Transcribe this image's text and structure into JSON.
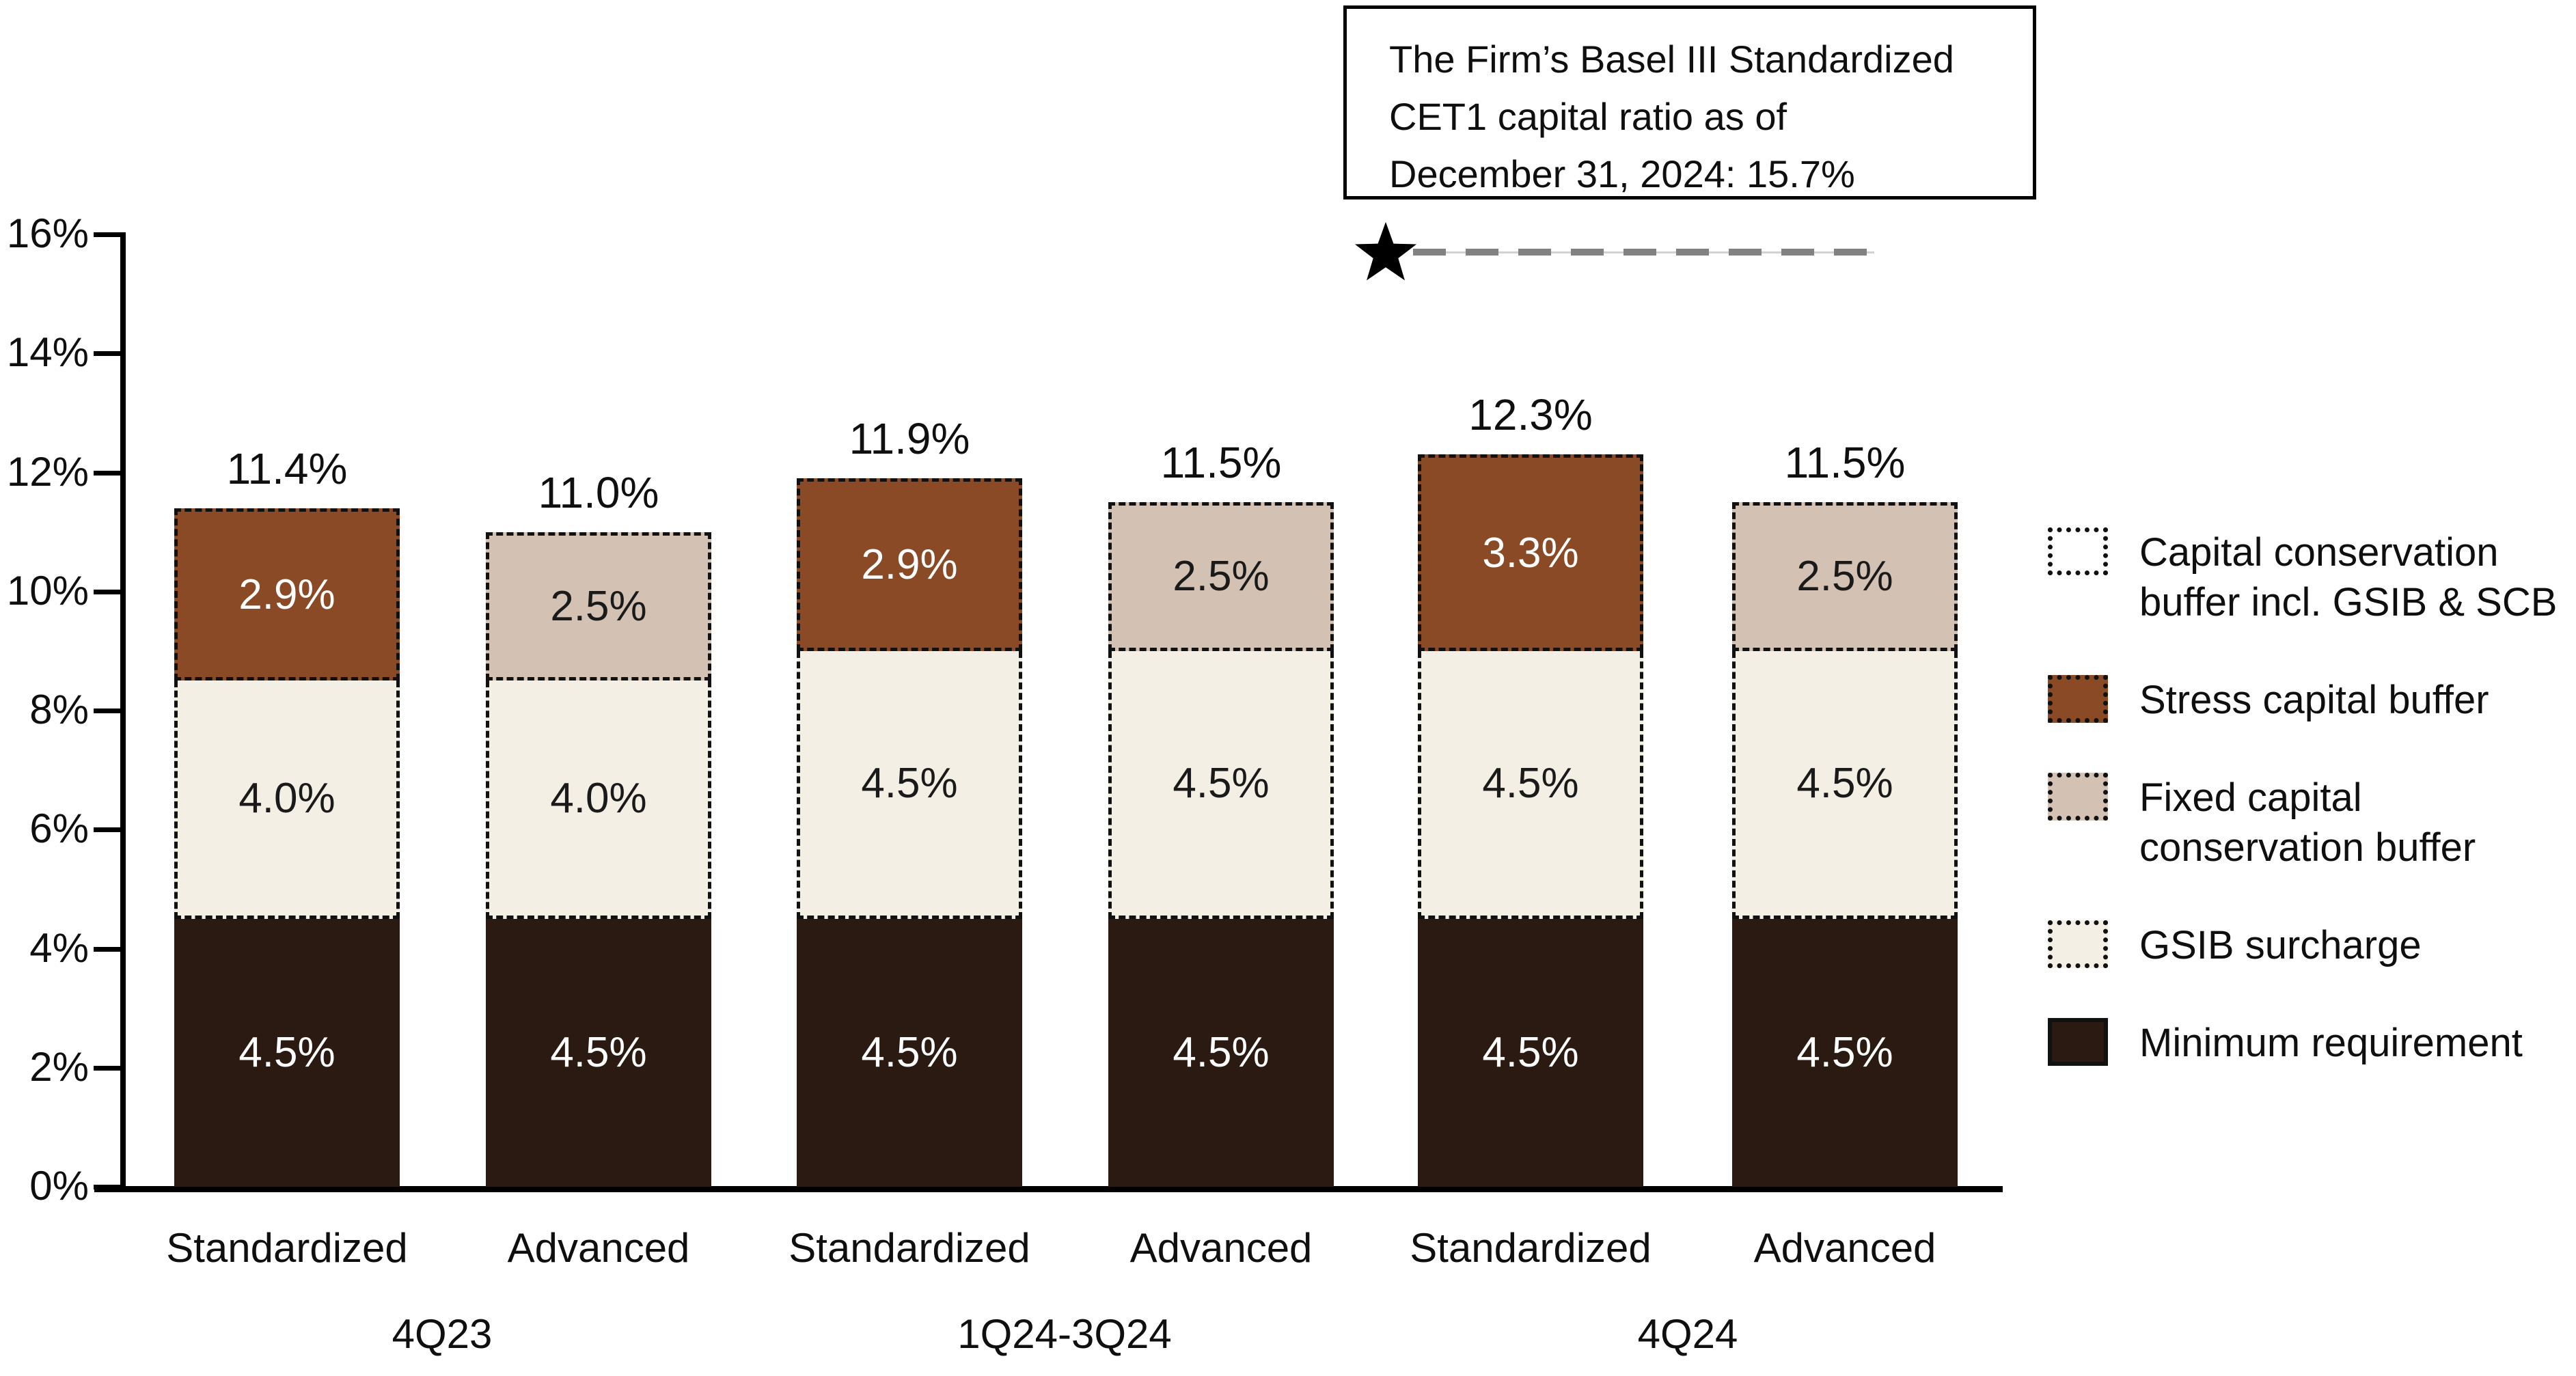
{
  "callout": {
    "text": [
      "The Firm’s Basel III Standardized",
      "CET1 capital ratio as of",
      "December 31, 2024: 15.7%"
    ]
  },
  "chart_data": {
    "type": "bar",
    "stacked": true,
    "unit": "%",
    "ylabel": "",
    "xlabel": "",
    "ylim": [
      0,
      16
    ],
    "y_ticks": [
      0,
      2,
      4,
      6,
      8,
      10,
      12,
      14,
      16
    ],
    "grid": false,
    "legend_position": "right",
    "groups": [
      "4Q23",
      "1Q24-3Q24",
      "4Q24"
    ],
    "marker": {
      "value": 15.7,
      "meaning": "The Firm’s Basel III Standardized CET1 capital ratio as of December 31, 2024"
    },
    "bars": [
      {
        "group": "4Q23",
        "approach": "Standardized",
        "total": 11.4,
        "total_label": "11.4%",
        "segments": [
          {
            "name": "Minimum requirement",
            "value": 4.5,
            "label": "4.5%"
          },
          {
            "name": "GSIB surcharge",
            "value": 4.0,
            "label": "4.0%"
          },
          {
            "name": "Stress capital buffer",
            "value": 2.9,
            "label": "2.9%"
          }
        ]
      },
      {
        "group": "4Q23",
        "approach": "Advanced",
        "total": 11.0,
        "total_label": "11.0%",
        "segments": [
          {
            "name": "Minimum requirement",
            "value": 4.5,
            "label": "4.5%"
          },
          {
            "name": "GSIB surcharge",
            "value": 4.0,
            "label": "4.0%"
          },
          {
            "name": "Fixed capital conservation buffer",
            "value": 2.5,
            "label": "2.5%"
          }
        ]
      },
      {
        "group": "1Q24-3Q24",
        "approach": "Standardized",
        "total": 11.9,
        "total_label": "11.9%",
        "segments": [
          {
            "name": "Minimum requirement",
            "value": 4.5,
            "label": "4.5%"
          },
          {
            "name": "GSIB surcharge",
            "value": 4.5,
            "label": "4.5%"
          },
          {
            "name": "Stress capital buffer",
            "value": 2.9,
            "label": "2.9%"
          }
        ]
      },
      {
        "group": "1Q24-3Q24",
        "approach": "Advanced",
        "total": 11.5,
        "total_label": "11.5%",
        "segments": [
          {
            "name": "Minimum requirement",
            "value": 4.5,
            "label": "4.5%"
          },
          {
            "name": "GSIB surcharge",
            "value": 4.5,
            "label": "4.5%"
          },
          {
            "name": "Fixed capital conservation buffer",
            "value": 2.5,
            "label": "2.5%"
          }
        ]
      },
      {
        "group": "4Q24",
        "approach": "Standardized",
        "total": 12.3,
        "total_label": "12.3%",
        "segments": [
          {
            "name": "Minimum requirement",
            "value": 4.5,
            "label": "4.5%"
          },
          {
            "name": "GSIB surcharge",
            "value": 4.5,
            "label": "4.5%"
          },
          {
            "name": "Stress capital buffer",
            "value": 3.3,
            "label": "3.3%"
          }
        ]
      },
      {
        "group": "4Q24",
        "approach": "Advanced",
        "total": 11.5,
        "total_label": "11.5%",
        "segments": [
          {
            "name": "Minimum requirement",
            "value": 4.5,
            "label": "4.5%"
          },
          {
            "name": "GSIB surcharge",
            "value": 4.5,
            "label": "4.5%"
          },
          {
            "name": "Fixed capital conservation buffer",
            "value": 2.5,
            "label": "2.5%"
          }
        ]
      }
    ]
  },
  "series_styles": {
    "Minimum requirement": {
      "fill": "#2A1A12",
      "label_color": "#FFFFFF",
      "border": "none"
    },
    "GSIB surcharge": {
      "fill": "#F4EFE4",
      "label_color": "#1A1A1A",
      "border": "dashed-noTop"
    },
    "Stress capital buffer": {
      "fill": "#8A4A25",
      "label_color": "#FFFFFF",
      "border": "dashed"
    },
    "Fixed capital conservation buffer": {
      "fill": "#D3C1B3",
      "label_color": "#1A1A1A",
      "border": "dashed"
    }
  },
  "legend": {
    "items": [
      {
        "label": "Capital conservation buffer incl. GSIB & SCB",
        "swatch_fill": "#FFFFFF",
        "swatch_border": "dotted"
      },
      {
        "label": "Stress capital buffer",
        "swatch_fill": "#8A4A25",
        "swatch_border": "dotted"
      },
      {
        "label": "Fixed capital conservation buffer",
        "swatch_fill": "#D3C1B3",
        "swatch_border": "dotted"
      },
      {
        "label": "GSIB surcharge",
        "swatch_fill": "#F4EFE4",
        "swatch_border": "dotted"
      },
      {
        "label": "Minimum requirement",
        "swatch_fill": "#2A1A12",
        "swatch_border": "solid"
      }
    ]
  },
  "colors": {
    "marker_star": "#000000",
    "marker_dash": "#828282",
    "axis": "#000000",
    "text": "#0f0f0f"
  }
}
